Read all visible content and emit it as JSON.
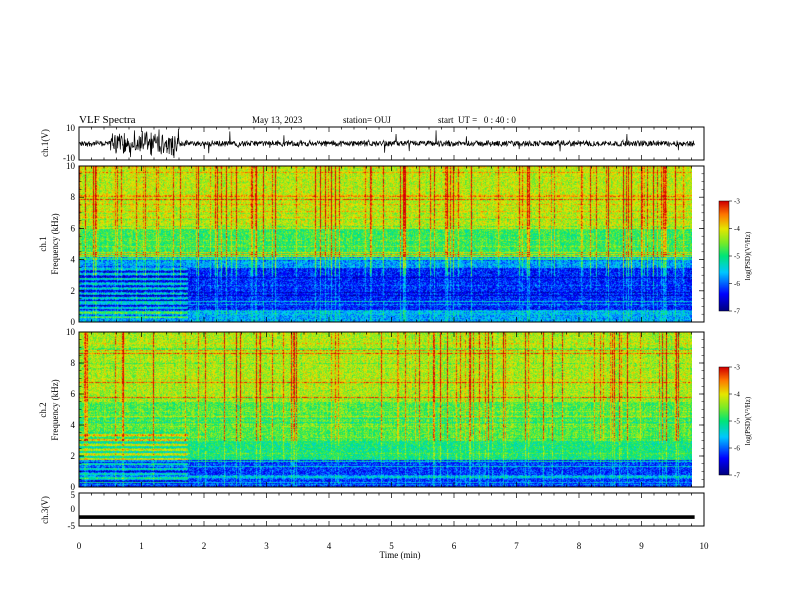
{
  "header": {
    "title": "VLF Spectra",
    "date": "May 13, 2023",
    "station": "station= OUJ",
    "start": "start  UT =   0 : 40 : 0"
  },
  "chart_data": [
    {
      "type": "line",
      "name": "ch1-waveform",
      "ylabel": "ch.1(V)",
      "ylim": [
        -10,
        10
      ],
      "yticks": [
        "10",
        "-10"
      ],
      "x_range_min": [
        0,
        9.85
      ],
      "burst_region_min": [
        0.5,
        1.6
      ],
      "color": "#000000"
    },
    {
      "type": "heatmap",
      "name": "ch1-spectrogram",
      "ylabel": "Frequency (kHz)",
      "channel_label": "ch.1",
      "ylim": [
        0,
        10
      ],
      "yticks": [
        "0",
        "2",
        "4",
        "6",
        "8",
        "10"
      ],
      "x_range_min": [
        0,
        9.85
      ],
      "colorbar": {
        "label": "log(PSD)(V²/Hz)",
        "ticks": [
          "-3",
          "-4",
          "-5",
          "-6",
          "-7"
        ],
        "range": [
          -7,
          -3
        ]
      }
    },
    {
      "type": "heatmap",
      "name": "ch2-spectrogram",
      "ylabel": "Frequency (kHz)",
      "channel_label": "ch.2",
      "ylim": [
        0,
        10
      ],
      "yticks": [
        "0",
        "2",
        "4",
        "6",
        "8",
        "10"
      ],
      "x_range_min": [
        0,
        9.85
      ],
      "colorbar": {
        "label": "log(PSD)(V²/Hz)",
        "ticks": [
          "-3",
          "-4",
          "-5",
          "-6",
          "-7"
        ],
        "range": [
          -7,
          -3
        ]
      }
    },
    {
      "type": "line",
      "name": "ch3-waveform",
      "ylabel": "ch.3(V)",
      "ylim": [
        -5,
        5
      ],
      "yticks": [
        "5",
        "0",
        "-5"
      ],
      "level_V": -2.3,
      "x_range_min": [
        0,
        9.85
      ],
      "color": "#000000"
    }
  ],
  "xaxis": {
    "label": "Time (min)",
    "range": [
      0,
      10
    ],
    "ticks": [
      "0",
      "1",
      "2",
      "3",
      "4",
      "5",
      "6",
      "7",
      "8",
      "9",
      "10"
    ]
  }
}
